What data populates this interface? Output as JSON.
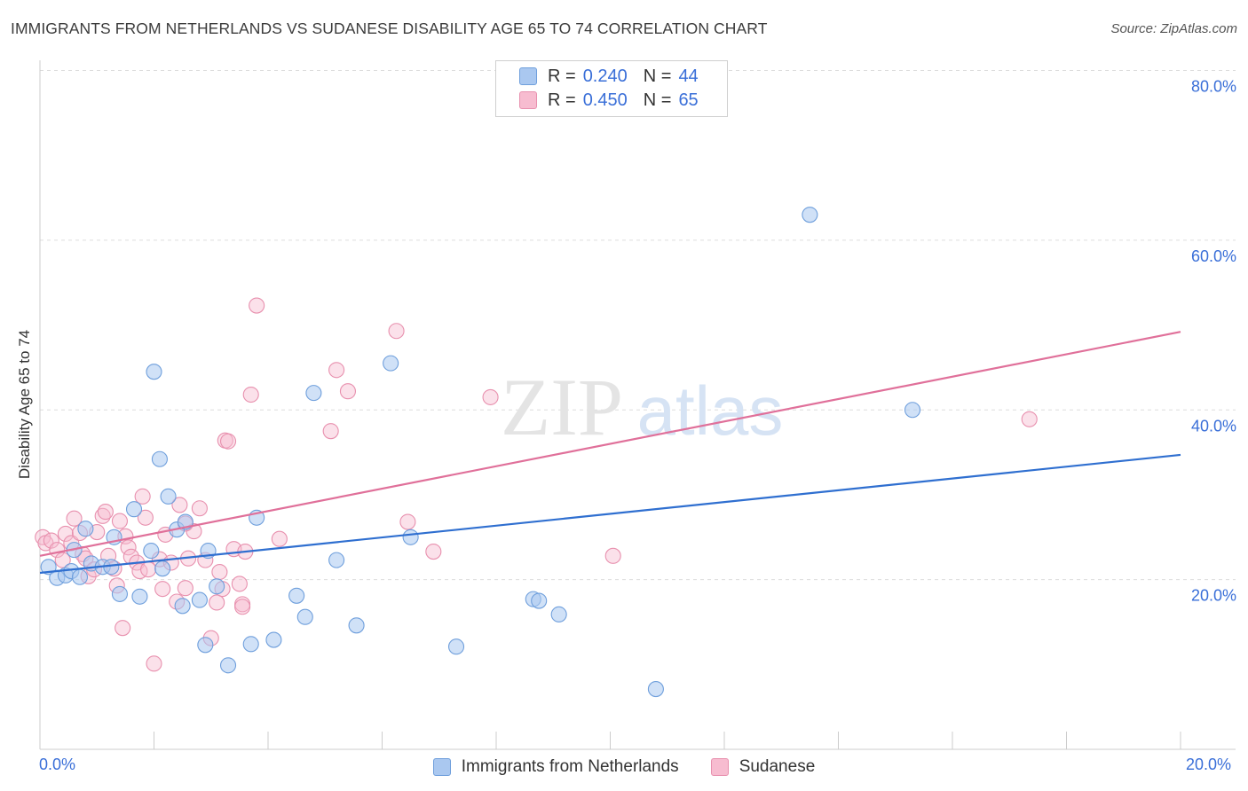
{
  "title": "IMMIGRANTS FROM NETHERLANDS VS SUDANESE DISABILITY AGE 65 TO 74 CORRELATION CHART",
  "source": "Source: ZipAtlas.com",
  "watermark": {
    "zip": "ZIP",
    "atlas": "atlas"
  },
  "legend": {
    "r_label": "R =",
    "n_label": "N =",
    "series": [
      {
        "r": "0.240",
        "n": "44"
      },
      {
        "r": "0.450",
        "n": "65"
      }
    ]
  },
  "colors": {
    "blue_fill": "#aac8f0",
    "blue_stroke": "#6f9fdc",
    "blue_line": "#2f6fd0",
    "pink_fill": "#f7bcd0",
    "pink_stroke": "#e890ae",
    "pink_line": "#e0709a",
    "tick_text": "#3a6fd8",
    "grid": "#dddddd"
  },
  "chart_data": {
    "type": "scatter",
    "title": "IMMIGRANTS FROM NETHERLANDS VS SUDANESE DISABILITY AGE 65 TO 74 CORRELATION CHART",
    "xlabel": "",
    "ylabel": "Disability Age 65 to 74",
    "xlim": [
      0,
      20
    ],
    "ylim": [
      0,
      80
    ],
    "x_tick_labels": [
      "0.0%",
      "20.0%"
    ],
    "y_ticks": [
      20,
      40,
      60,
      80
    ],
    "y_tick_labels": [
      "20.0%",
      "40.0%",
      "60.0%",
      "80.0%"
    ],
    "grid": true,
    "legend_position": "top-center",
    "series": [
      {
        "name": "Immigrants from Netherlands",
        "r": 0.24,
        "n": 44,
        "trend": {
          "x": [
            0,
            20
          ],
          "y": [
            20.8,
            34.7
          ]
        },
        "points": [
          [
            0.15,
            21.5
          ],
          [
            0.3,
            20.2
          ],
          [
            0.45,
            20.5
          ],
          [
            0.55,
            21.0
          ],
          [
            0.7,
            20.3
          ],
          [
            0.8,
            26.0
          ],
          [
            0.9,
            21.9
          ],
          [
            1.1,
            21.5
          ],
          [
            1.3,
            25.0
          ],
          [
            1.4,
            18.3
          ],
          [
            1.65,
            28.3
          ],
          [
            1.75,
            18.0
          ],
          [
            1.95,
            23.4
          ],
          [
            2.0,
            44.5
          ],
          [
            2.1,
            34.2
          ],
          [
            2.15,
            21.3
          ],
          [
            2.25,
            29.8
          ],
          [
            2.4,
            25.9
          ],
          [
            2.5,
            16.9
          ],
          [
            2.55,
            26.8
          ],
          [
            2.8,
            17.6
          ],
          [
            2.9,
            12.3
          ],
          [
            2.95,
            23.4
          ],
          [
            3.1,
            19.2
          ],
          [
            3.3,
            9.9
          ],
          [
            3.7,
            12.4
          ],
          [
            3.8,
            27.3
          ],
          [
            4.1,
            12.9
          ],
          [
            4.5,
            18.1
          ],
          [
            4.65,
            15.6
          ],
          [
            4.8,
            42.0
          ],
          [
            5.2,
            22.3
          ],
          [
            5.55,
            14.6
          ],
          [
            6.15,
            45.5
          ],
          [
            6.5,
            25.0
          ],
          [
            7.3,
            12.1
          ],
          [
            8.65,
            17.7
          ],
          [
            8.75,
            17.5
          ],
          [
            9.1,
            15.9
          ],
          [
            10.8,
            7.1
          ],
          [
            13.5,
            63.0
          ],
          [
            15.3,
            40.0
          ],
          [
            0.6,
            23.5
          ],
          [
            1.25,
            21.5
          ]
        ]
      },
      {
        "name": "Sudanese",
        "r": 0.45,
        "n": 65,
        "trend": {
          "x": [
            0,
            20
          ],
          "y": [
            22.8,
            49.2
          ]
        },
        "points": [
          [
            0.05,
            25.0
          ],
          [
            0.1,
            24.3
          ],
          [
            0.2,
            24.6
          ],
          [
            0.3,
            23.5
          ],
          [
            0.4,
            22.3
          ],
          [
            0.45,
            25.4
          ],
          [
            0.55,
            24.3
          ],
          [
            0.6,
            27.2
          ],
          [
            0.7,
            25.5
          ],
          [
            0.75,
            23.0
          ],
          [
            0.8,
            22.5
          ],
          [
            0.85,
            20.4
          ],
          [
            0.95,
            21.2
          ],
          [
            1.0,
            25.6
          ],
          [
            1.1,
            27.5
          ],
          [
            1.15,
            28.0
          ],
          [
            1.2,
            22.8
          ],
          [
            1.3,
            21.3
          ],
          [
            1.35,
            19.3
          ],
          [
            1.4,
            26.9
          ],
          [
            1.45,
            14.3
          ],
          [
            1.5,
            25.1
          ],
          [
            1.55,
            23.8
          ],
          [
            1.6,
            22.7
          ],
          [
            1.7,
            22.0
          ],
          [
            1.75,
            21.0
          ],
          [
            1.8,
            29.8
          ],
          [
            1.85,
            27.3
          ],
          [
            1.9,
            21.2
          ],
          [
            2.0,
            10.1
          ],
          [
            2.1,
            22.4
          ],
          [
            2.15,
            18.9
          ],
          [
            2.2,
            25.3
          ],
          [
            2.3,
            22.0
          ],
          [
            2.4,
            17.4
          ],
          [
            2.45,
            28.8
          ],
          [
            2.55,
            19.0
          ],
          [
            2.6,
            22.5
          ],
          [
            2.7,
            25.7
          ],
          [
            2.8,
            28.4
          ],
          [
            2.9,
            22.3
          ],
          [
            3.0,
            13.1
          ],
          [
            3.1,
            17.3
          ],
          [
            3.2,
            18.9
          ],
          [
            3.25,
            36.4
          ],
          [
            3.4,
            23.6
          ],
          [
            3.5,
            19.5
          ],
          [
            3.55,
            17.1
          ],
          [
            3.6,
            23.3
          ],
          [
            3.7,
            41.8
          ],
          [
            3.8,
            52.3
          ],
          [
            3.3,
            36.3
          ],
          [
            2.55,
            26.6
          ],
          [
            4.2,
            24.8
          ],
          [
            5.1,
            37.5
          ],
          [
            5.2,
            44.7
          ],
          [
            5.4,
            42.2
          ],
          [
            6.25,
            49.3
          ],
          [
            6.45,
            26.8
          ],
          [
            6.9,
            23.3
          ],
          [
            7.9,
            41.5
          ],
          [
            10.05,
            22.8
          ],
          [
            17.35,
            38.9
          ],
          [
            3.15,
            20.9
          ],
          [
            3.55,
            16.8
          ]
        ]
      }
    ]
  }
}
